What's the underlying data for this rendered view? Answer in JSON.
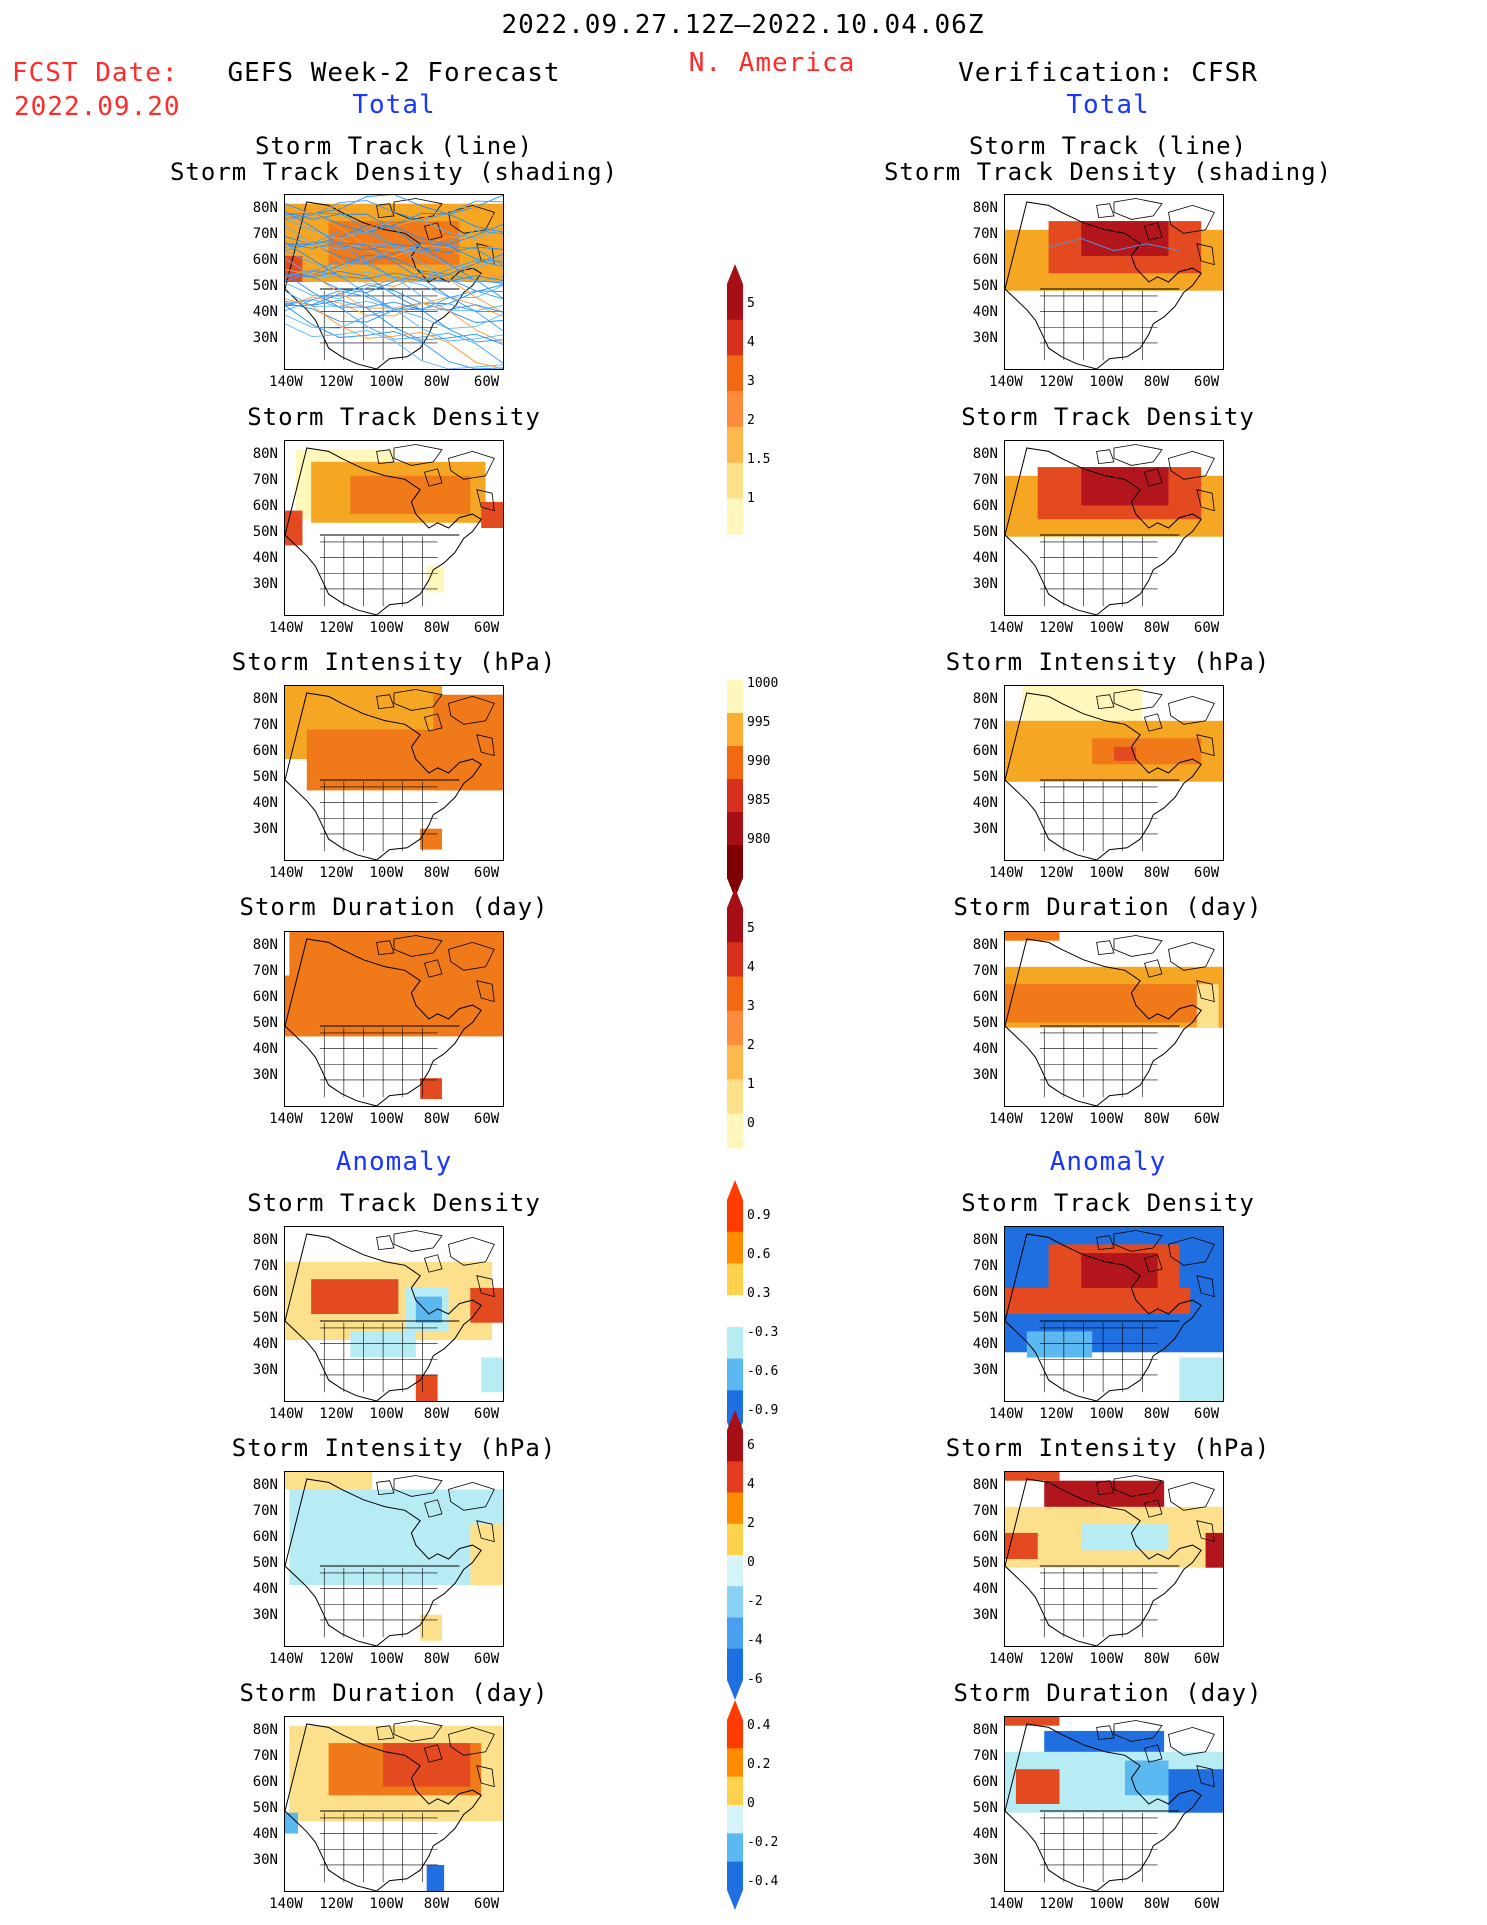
{
  "header": {
    "period": "2022.09.27.12Z–2022.10.04.06Z",
    "region": "N. America",
    "fcst_label": "FCST Date:",
    "fcst_date": "2022.09.20",
    "left_title": "GEFS Week-2 Forecast",
    "right_title": "Verification: CFSR",
    "total_label": "Total",
    "anomaly_label": "Anomaly"
  },
  "axes": {
    "lat_labels": [
      "80N",
      "70N",
      "60N",
      "50N",
      "40N",
      "30N"
    ],
    "lon_labels": [
      "140W",
      "120W",
      "100W",
      "80W",
      "60W"
    ]
  },
  "panels": {
    "track": {
      "title1": "Storm Track (line)",
      "title2": "Storm Track Density (shading)"
    },
    "density": {
      "title": "Storm Track Density"
    },
    "intensity": {
      "title": "Storm Intensity (hPa)"
    },
    "duration": {
      "title": "Storm Duration (day)"
    },
    "anom_density": {
      "title": "Storm Track Density"
    },
    "anom_intensity": {
      "title": "Storm Intensity (hPa)"
    },
    "anom_duration": {
      "title": "Storm Duration (day)"
    }
  },
  "colorbars": {
    "density": {
      "labels": [
        "5",
        "4",
        "3",
        "2",
        "1.5",
        "1"
      ],
      "colors": [
        "#a50f15",
        "#d7301f",
        "#f16913",
        "#fd8d3c",
        "#fdb94d",
        "#fde08b",
        "#fff7bc"
      ]
    },
    "intensity": {
      "labels": [
        "1000",
        "995",
        "990",
        "985",
        "980"
      ],
      "colors": [
        "#fff7bc",
        "#fdae35",
        "#f16913",
        "#d7301f",
        "#a50f15",
        "#7f0000"
      ]
    },
    "duration": {
      "labels": [
        "5",
        "4",
        "3",
        "2",
        "1",
        "0"
      ],
      "colors": [
        "#a50f15",
        "#d7301f",
        "#f16913",
        "#fd8d3c",
        "#fdb94d",
        "#fde08b",
        "#fff7bc"
      ]
    },
    "anom_density": {
      "labels": [
        "0.9",
        "0.6",
        "0.3",
        "-0.3",
        "-0.6",
        "-0.9"
      ],
      "colors": [
        "#ff3b00",
        "#ff8c00",
        "#ffd24d",
        "#ffffff",
        "#b8ecf5",
        "#5cb8f0",
        "#1f6fe0"
      ]
    },
    "anom_intensity": {
      "labels": [
        "6",
        "4",
        "2",
        "0",
        "-2",
        "-4",
        "-6"
      ],
      "colors": [
        "#a50f15",
        "#e33b1b",
        "#ff8c00",
        "#ffd24d",
        "#d6f4fa",
        "#8ad2f5",
        "#4aa0ee",
        "#1f6fe0"
      ]
    },
    "anom_duration": {
      "labels": [
        "0.4",
        "0.2",
        "0",
        "-0.2",
        "-0.4"
      ],
      "colors": [
        "#ff3b00",
        "#ff8c00",
        "#ffd24d",
        "#d6f4fa",
        "#5cb8f0",
        "#1f6fe0"
      ]
    }
  }
}
